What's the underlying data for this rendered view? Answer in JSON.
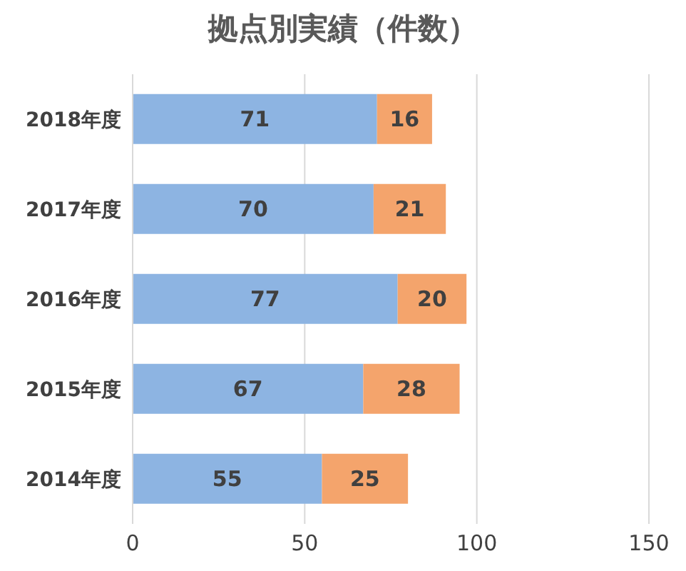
{
  "chart_data": {
    "type": "bar",
    "title": "拠点別実績（件数）",
    "orientation": "horizontal",
    "stacked": true,
    "categories": [
      "2018年度",
      "2017年度",
      "2016年度",
      "2015年度",
      "2014年度"
    ],
    "series": [
      {
        "color": "#8db4e2",
        "values": [
          71,
          70,
          77,
          67,
          55
        ]
      },
      {
        "color": "#f4a46c",
        "values": [
          16,
          21,
          20,
          28,
          25
        ]
      }
    ],
    "xlim": [
      0,
      150
    ],
    "xticks": [
      0,
      50,
      100,
      150
    ],
    "grid": "x",
    "data_labels": true
  }
}
